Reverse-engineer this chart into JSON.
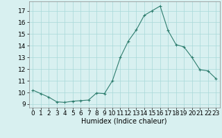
{
  "x": [
    0,
    1,
    2,
    3,
    4,
    5,
    6,
    7,
    8,
    9,
    10,
    11,
    12,
    13,
    14,
    15,
    16,
    17,
    18,
    19,
    20,
    21,
    22,
    23
  ],
  "y": [
    10.2,
    9.9,
    9.6,
    9.2,
    9.15,
    9.25,
    9.3,
    9.35,
    9.95,
    9.9,
    11.0,
    13.0,
    14.4,
    15.35,
    16.6,
    17.0,
    17.4,
    15.3,
    14.1,
    13.9,
    13.0,
    11.95,
    11.85,
    11.2
  ],
  "line_color": "#2e7d6e",
  "marker": "+",
  "marker_size": 3,
  "bg_color": "#d8f0f0",
  "grid_color": "#a8d8d8",
  "xlabel": "Humidex (Indice chaleur)",
  "xlim": [
    -0.5,
    23.5
  ],
  "ylim": [
    8.7,
    17.8
  ],
  "yticks": [
    9,
    10,
    11,
    12,
    13,
    14,
    15,
    16,
    17
  ],
  "xticks": [
    0,
    1,
    2,
    3,
    4,
    5,
    6,
    7,
    8,
    9,
    10,
    11,
    12,
    13,
    14,
    15,
    16,
    17,
    18,
    19,
    20,
    21,
    22,
    23
  ],
  "font_size": 6.5,
  "label_fontsize": 7
}
